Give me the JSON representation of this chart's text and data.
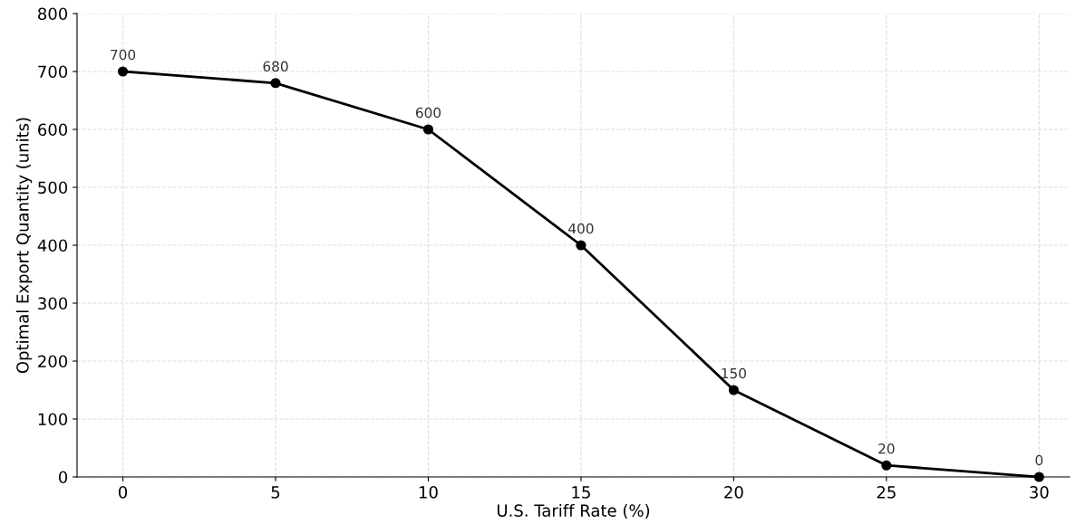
{
  "chart_data": {
    "type": "line",
    "xlabel": "U.S. Tariff Rate (%)",
    "ylabel": "Optimal Export Quantity (units)",
    "x": [
      0,
      5,
      10,
      15,
      20,
      25,
      30
    ],
    "series": [
      {
        "color": "#000000",
        "values": [
          700,
          680,
          600,
          400,
          150,
          20,
          0
        ]
      }
    ],
    "xlim": [
      -1.5,
      31
    ],
    "xticks": [
      0,
      5,
      10,
      15,
      20,
      25,
      30
    ],
    "ylim": [
      0,
      800
    ],
    "yticks": [
      0,
      100,
      200,
      300,
      400,
      500,
      600,
      700,
      800
    ],
    "grid": true,
    "marker": "circle",
    "line_style": "solid",
    "data_labels": true
  }
}
